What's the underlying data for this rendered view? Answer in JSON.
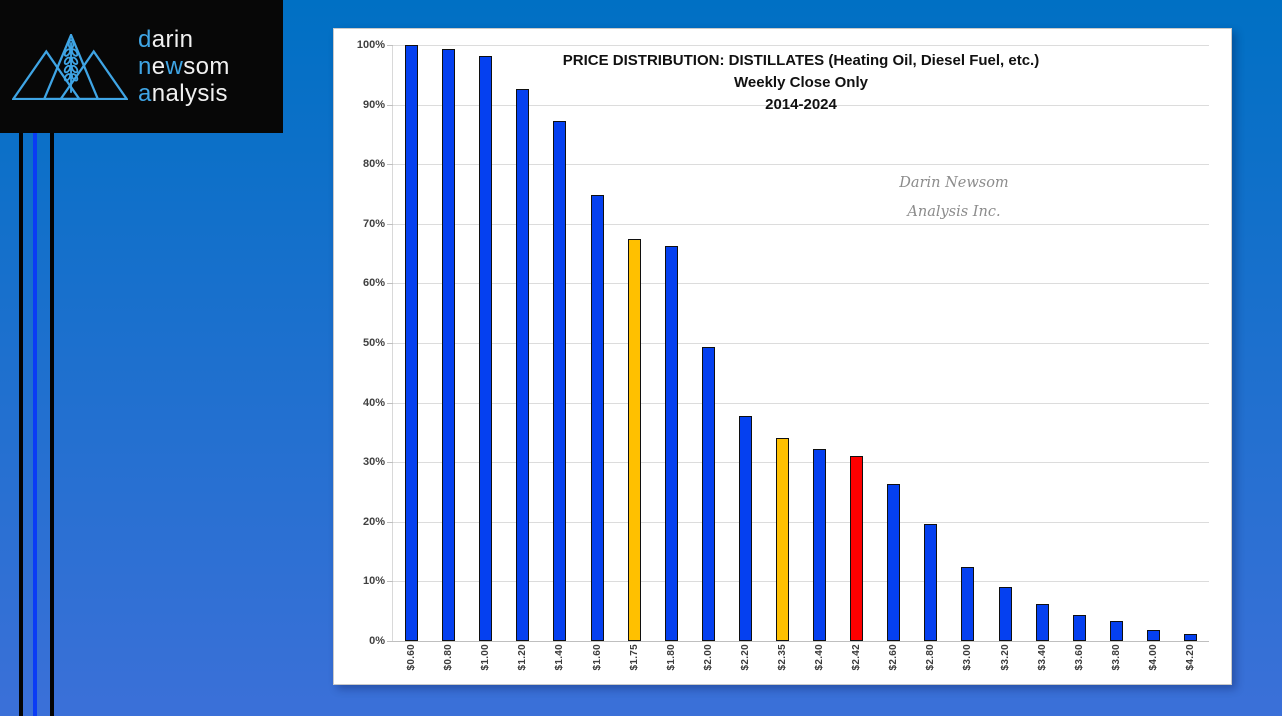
{
  "colors": {
    "background_top": "#0070c4",
    "background_bottom": "#3b70d8",
    "logo_accent": "#3fa5e5",
    "stripe_blue": "#0a3cf5"
  },
  "logo": {
    "icon": "mountains-wheat-icon",
    "brand_lines": [
      {
        "segments": [
          {
            "t": "d",
            "hl": true
          },
          {
            "t": "arin",
            "hl": false
          }
        ]
      },
      {
        "segments": [
          {
            "t": "n",
            "hl": true
          },
          {
            "t": "e",
            "hl": false
          },
          {
            "t": "w",
            "hl": true
          },
          {
            "t": "som",
            "hl": false
          }
        ]
      },
      {
        "segments": [
          {
            "t": "a",
            "hl": true
          },
          {
            "t": "nalysis",
            "hl": false
          }
        ]
      }
    ]
  },
  "watermark": {
    "line1": "Darin Newsom",
    "line2": "Analysis Inc."
  },
  "chart_data": {
    "type": "bar",
    "title_lines": [
      "PRICE DISTRIBUTION: DISTILLATES (Heating Oil, Diesel Fuel, etc.)",
      "Weekly Close Only",
      "2014-2024"
    ],
    "categories": [
      "$0.60",
      "$0.80",
      "$1.00",
      "$1.20",
      "$1.40",
      "$1.60",
      "$1.75",
      "$1.80",
      "$2.00",
      "$2.20",
      "$2.35",
      "$2.40",
      "$2.42",
      "$2.60",
      "$2.80",
      "$3.00",
      "$3.20",
      "$3.40",
      "$3.60",
      "$3.80",
      "$4.00",
      "$4.20"
    ],
    "values": [
      100.0,
      99.4,
      98.1,
      92.7,
      87.3,
      74.8,
      67.4,
      66.3,
      49.4,
      37.8,
      34.0,
      32.2,
      31.1,
      26.3,
      19.6,
      12.5,
      9.0,
      6.2,
      4.4,
      3.3,
      1.9,
      1.1
    ],
    "bar_color_keys": [
      "blue",
      "blue",
      "blue",
      "blue",
      "blue",
      "blue",
      "gold",
      "blue",
      "blue",
      "blue",
      "gold",
      "blue",
      "red",
      "blue",
      "blue",
      "blue",
      "blue",
      "blue",
      "blue",
      "blue",
      "blue",
      "blue"
    ],
    "bar_colors": {
      "blue": "#0540f0",
      "gold": "#ffc000",
      "red": "#ff0000"
    },
    "xlabel": "",
    "ylabel": "",
    "ylim": [
      0,
      100
    ],
    "ytick_step": 10,
    "ytick_suffix": "%",
    "grid": true,
    "legend": "none"
  }
}
